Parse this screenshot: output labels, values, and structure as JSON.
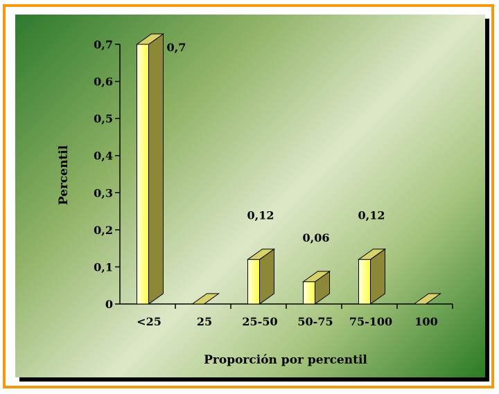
{
  "chart_data": {
    "type": "bar",
    "title": "",
    "xlabel": "Proporción por percentil",
    "ylabel": "Percentil",
    "categories": [
      "<25",
      "25",
      "25-50",
      "50-75",
      "75-100",
      "100"
    ],
    "values": [
      0.7,
      0,
      0.12,
      0.06,
      0.12,
      0
    ],
    "data_labels": [
      "0,7",
      "",
      "0,12",
      "0,06",
      "0,12",
      ""
    ],
    "ylim": [
      0,
      0.7
    ],
    "yticks": [
      0,
      0.1,
      0.2,
      0.3,
      0.4,
      0.5,
      0.6,
      0.7
    ],
    "ytick_labels": [
      "0",
      "0,1",
      "0,2",
      "0,3",
      "0,4",
      "0,5",
      "0,6",
      "0,7"
    ],
    "grid": false,
    "legend": "none",
    "colors": {
      "bar_front": "#ffff66",
      "bar_top": "#d7d26a",
      "bar_side": "#8c8838",
      "frame": "#f59a0e"
    }
  }
}
